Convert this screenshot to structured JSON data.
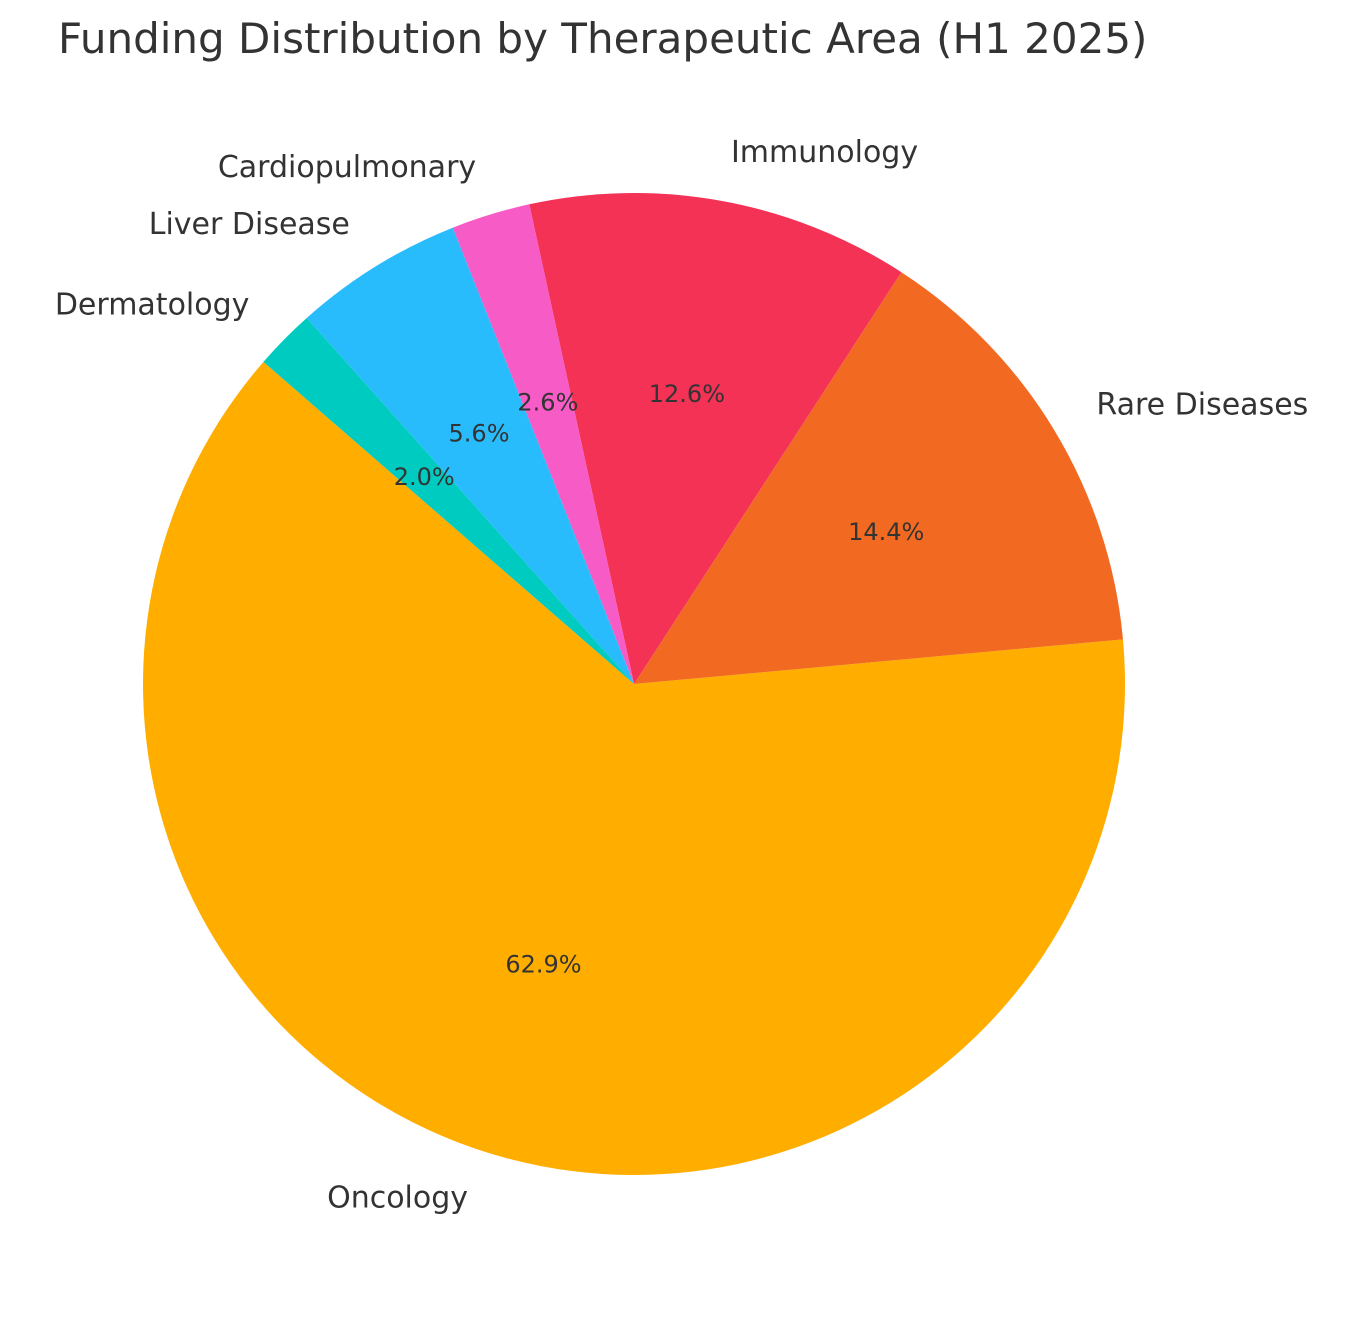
{
  "chart_data": {
    "type": "pie",
    "title": "Funding Distribution by Therapeutic Area (H1 2025)",
    "slices": [
      {
        "label": "Oncology",
        "value": 62.9,
        "pct_label": "62.9%",
        "color": "#FFAE00"
      },
      {
        "label": "Rare Diseases",
        "value": 14.4,
        "pct_label": "14.4%",
        "color": "#F26A21"
      },
      {
        "label": "Immunology",
        "value": 12.6,
        "pct_label": "12.6%",
        "color": "#F43256"
      },
      {
        "label": "Cardiopulmonary",
        "value": 2.6,
        "pct_label": "2.6%",
        "color": "#F75BC6"
      },
      {
        "label": "Liver Disease",
        "value": 5.6,
        "pct_label": "5.6%",
        "color": "#29BCFD"
      },
      {
        "label": "Dermatology",
        "value": 2.0,
        "pct_label": "2.0%",
        "color": "#00CBC0"
      }
    ],
    "start_angle_deg": 139,
    "direction": "counterclockwise",
    "legend": "none"
  }
}
